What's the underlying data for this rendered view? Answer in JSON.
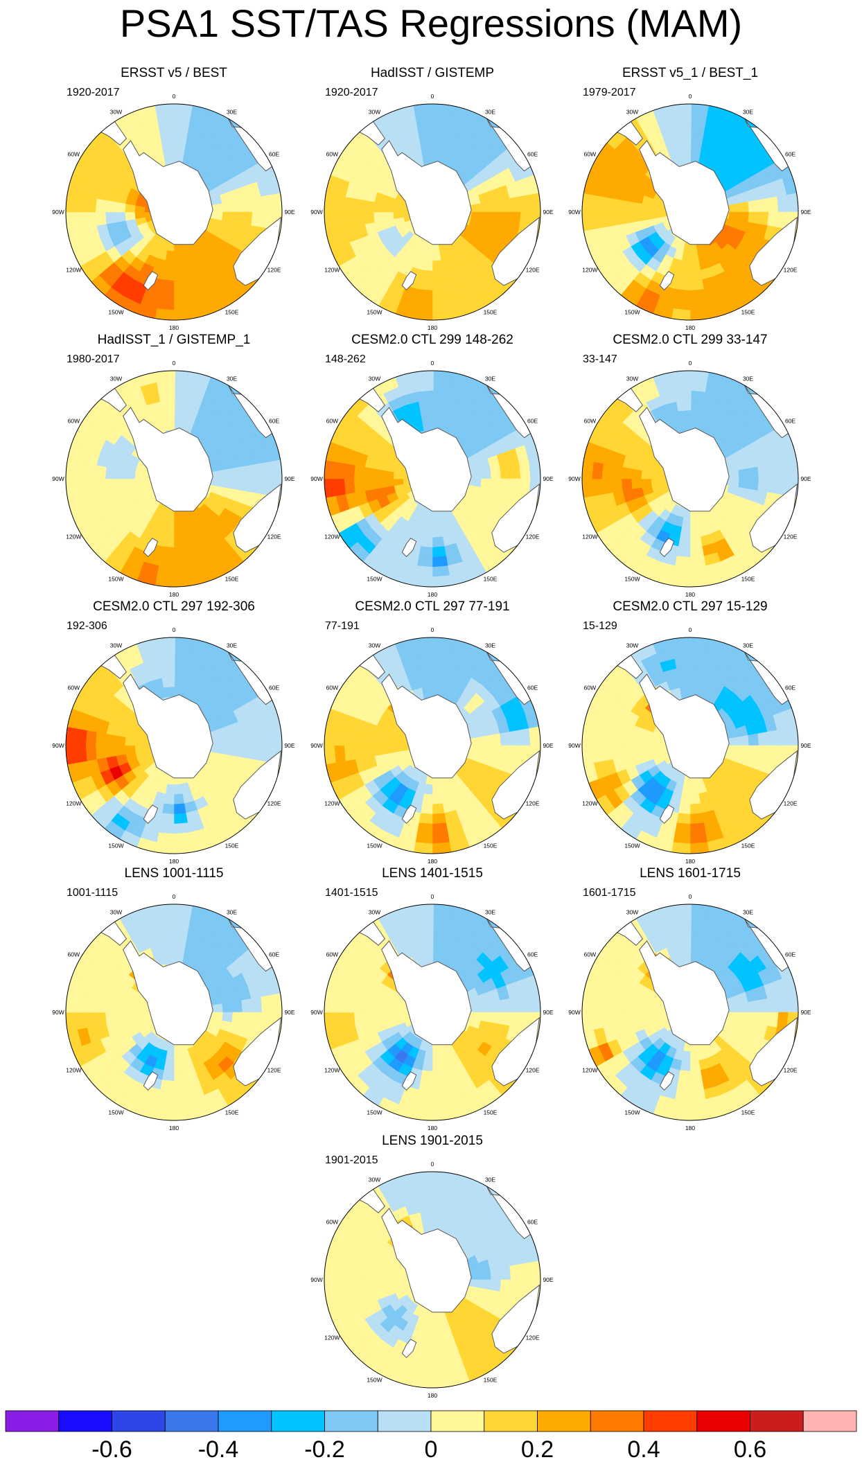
{
  "title": "PSA1 SST/TAS Regressions (MAM)",
  "lon_labels": [
    "0",
    "30E",
    "60E",
    "90E",
    "120E",
    "150E",
    "180",
    "150W",
    "120W",
    "90W",
    "60W",
    "30W"
  ],
  "colors": {
    "land": "#ffffff",
    "coast": "#555555",
    "border": "#000000",
    "levels": [
      "#8a1ee6",
      "#1a0dff",
      "#2d46e8",
      "#3a78ee",
      "#1f9bff",
      "#00c3ff",
      "#7ec8f4",
      "#b9dff5",
      "#fff799",
      "#ffd633",
      "#ffaa00",
      "#ff7a00",
      "#ff3d00",
      "#eb0000",
      "#cc1d1d",
      "#ffb3b3"
    ]
  },
  "colorbar": {
    "tick_labels": [
      "-0.6",
      "-0.4",
      "-0.2",
      "0",
      "0.2",
      "0.4",
      "0.6"
    ]
  },
  "chart_data": [
    {
      "type": "heatmap",
      "title": "ERSST v5 / BEST",
      "period": "1920-2017",
      "pattern": {
        "base": 0.06,
        "wave": [
          0.14,
          200,
          0.12,
          135
        ],
        "blobs": [
          [
            248,
            0.55,
            -0.3,
            0.32
          ],
          [
            218,
            0.8,
            0.25,
            0.45
          ],
          [
            198,
            0.82,
            0.18,
            0.5
          ],
          [
            280,
            0.25,
            0.22,
            0.3
          ],
          [
            75,
            0.65,
            0.1,
            0.55
          ]
        ]
      }
    },
    {
      "type": "heatmap",
      "title": "HadISST / GISTEMP",
      "period": "1920-2017",
      "pattern": {
        "base": 0.05,
        "wave": [
          0.1,
          190,
          0.12,
          110
        ],
        "blobs": [
          [
            300,
            0.7,
            -0.08,
            0.6
          ],
          [
            190,
            0.85,
            0.22,
            0.45
          ],
          [
            240,
            0.45,
            -0.12,
            0.3
          ],
          [
            90,
            0.6,
            0.1,
            0.4
          ]
        ]
      }
    },
    {
      "type": "heatmap",
      "title": "ERSST v5_1 / BEST_1",
      "period": "1979-2017",
      "pattern": {
        "base": 0.05,
        "wave": [
          0.16,
          200,
          0.18,
          130
        ],
        "blobs": [
          [
            230,
            0.5,
            -0.45,
            0.25
          ],
          [
            205,
            0.9,
            0.28,
            0.4
          ],
          [
            95,
            0.45,
            0.15,
            0.4
          ],
          [
            300,
            0.75,
            0.1,
            0.4
          ],
          [
            150,
            0.6,
            -0.1,
            0.3
          ]
        ]
      }
    },
    {
      "type": "heatmap",
      "title": "HadISST_1 / GISTEMP_1",
      "period": "1980-2017",
      "pattern": {
        "base": 0.04,
        "wave": [
          0.12,
          200,
          0.1,
          150
        ],
        "blobs": [
          [
            200,
            0.9,
            0.2,
            0.3
          ],
          [
            300,
            0.55,
            -0.1,
            0.4
          ],
          [
            350,
            0.8,
            0.12,
            0.3
          ],
          [
            120,
            0.6,
            0.08,
            0.35
          ]
        ]
      }
    },
    {
      "type": "heatmap",
      "title": "CESM2.0 CTL 299 148-262",
      "period": "148-262",
      "pattern": {
        "base": 0.0,
        "wave": [
          0.1,
          250,
          0.1,
          110
        ],
        "blobs": [
          [
            250,
            0.5,
            0.25,
            0.25
          ],
          [
            232,
            0.88,
            -0.35,
            0.3
          ],
          [
            265,
            0.9,
            0.3,
            0.35
          ],
          [
            335,
            0.6,
            -0.28,
            0.3
          ],
          [
            78,
            0.75,
            0.25,
            0.25
          ],
          [
            175,
            0.75,
            -0.3,
            0.2
          ]
        ]
      }
    },
    {
      "type": "heatmap",
      "title": "CESM2.0 CTL 299 33-147",
      "period": "33-147",
      "pattern": {
        "base": 0.02,
        "wave": [
          0.1,
          240,
          0.08,
          115
        ],
        "blobs": [
          [
            255,
            0.55,
            0.2,
            0.25
          ],
          [
            205,
            0.55,
            -0.35,
            0.25
          ],
          [
            335,
            0.55,
            -0.22,
            0.3
          ],
          [
            95,
            0.55,
            -0.12,
            0.25
          ],
          [
            160,
            0.7,
            0.3,
            0.2
          ],
          [
            275,
            0.85,
            0.15,
            0.35
          ]
        ]
      }
    },
    {
      "type": "heatmap",
      "title": "CESM2.0 CTL 297 192-306",
      "period": "192-306",
      "pattern": {
        "base": 0.02,
        "wave": [
          0.12,
          245,
          0.08,
          110
        ],
        "blobs": [
          [
            245,
            0.6,
            0.4,
            0.25
          ],
          [
            215,
            0.85,
            -0.3,
            0.3
          ],
          [
            330,
            0.55,
            -0.25,
            0.25
          ],
          [
            175,
            0.6,
            -0.35,
            0.2
          ],
          [
            270,
            0.92,
            0.3,
            0.3
          ]
        ]
      }
    },
    {
      "type": "heatmap",
      "title": "CESM2.0 CTL 297 77-191",
      "period": "77-191",
      "pattern": {
        "base": 0.0,
        "wave": [
          0.1,
          200,
          0.1,
          110
        ],
        "blobs": [
          [
            218,
            0.55,
            -0.4,
            0.28
          ],
          [
            178,
            0.82,
            0.35,
            0.3
          ],
          [
            72,
            0.8,
            -0.3,
            0.22
          ],
          [
            320,
            0.45,
            0.3,
            0.2
          ],
          [
            255,
            0.88,
            0.2,
            0.3
          ],
          [
            40,
            0.55,
            0.2,
            0.25
          ]
        ]
      }
    },
    {
      "type": "heatmap",
      "title": "CESM2.0 CTL 297 15-129",
      "period": "15-129",
      "pattern": {
        "base": 0.0,
        "wave": [
          0.1,
          200,
          0.1,
          120
        ],
        "blobs": [
          [
            220,
            0.55,
            -0.45,
            0.28
          ],
          [
            175,
            0.8,
            0.35,
            0.3
          ],
          [
            240,
            0.85,
            0.3,
            0.28
          ],
          [
            320,
            0.5,
            0.3,
            0.2
          ],
          [
            70,
            0.6,
            -0.2,
            0.3
          ],
          [
            340,
            0.75,
            -0.15,
            0.3
          ]
        ]
      }
    },
    {
      "type": "heatmap",
      "title": "LENS 1001-1115",
      "period": "1001-1115",
      "pattern": {
        "base": 0.02,
        "wave": [
          0.08,
          200,
          0.06,
          120
        ],
        "blobs": [
          [
            205,
            0.5,
            -0.4,
            0.28
          ],
          [
            325,
            0.45,
            0.35,
            0.18
          ],
          [
            135,
            0.65,
            0.22,
            0.25
          ],
          [
            75,
            0.55,
            -0.18,
            0.25
          ],
          [
            255,
            0.85,
            0.15,
            0.3
          ]
        ]
      }
    },
    {
      "type": "heatmap",
      "title": "LENS 1401-1515",
      "period": "1401-1515",
      "pattern": {
        "base": 0.0,
        "wave": [
          0.08,
          200,
          0.08,
          120
        ],
        "blobs": [
          [
            215,
            0.5,
            -0.45,
            0.28
          ],
          [
            320,
            0.45,
            0.4,
            0.18
          ],
          [
            120,
            0.6,
            0.12,
            0.3
          ],
          [
            60,
            0.7,
            -0.15,
            0.3
          ],
          [
            260,
            0.9,
            0.15,
            0.25
          ]
        ]
      }
    },
    {
      "type": "heatmap",
      "title": "LENS 1601-1715",
      "period": "1601-1715",
      "pattern": {
        "base": 0.0,
        "wave": [
          0.08,
          200,
          0.08,
          120
        ],
        "blobs": [
          [
            215,
            0.55,
            -0.4,
            0.28
          ],
          [
            325,
            0.5,
            0.35,
            0.2
          ],
          [
            245,
            0.88,
            0.3,
            0.2
          ],
          [
            100,
            0.9,
            0.3,
            0.18
          ],
          [
            160,
            0.65,
            0.25,
            0.18
          ],
          [
            60,
            0.65,
            -0.15,
            0.3
          ]
        ]
      }
    },
    {
      "type": "heatmap",
      "title": "LENS 1901-2015",
      "period": "1901-2015",
      "pattern": {
        "base": 0.03,
        "wave": [
          0.08,
          200,
          0.06,
          120
        ],
        "blobs": [
          [
            225,
            0.5,
            -0.2,
            0.3
          ],
          [
            330,
            0.5,
            0.25,
            0.2
          ],
          [
            85,
            0.45,
            -0.15,
            0.25
          ],
          [
            30,
            0.7,
            0.1,
            0.3
          ]
        ]
      }
    }
  ]
}
